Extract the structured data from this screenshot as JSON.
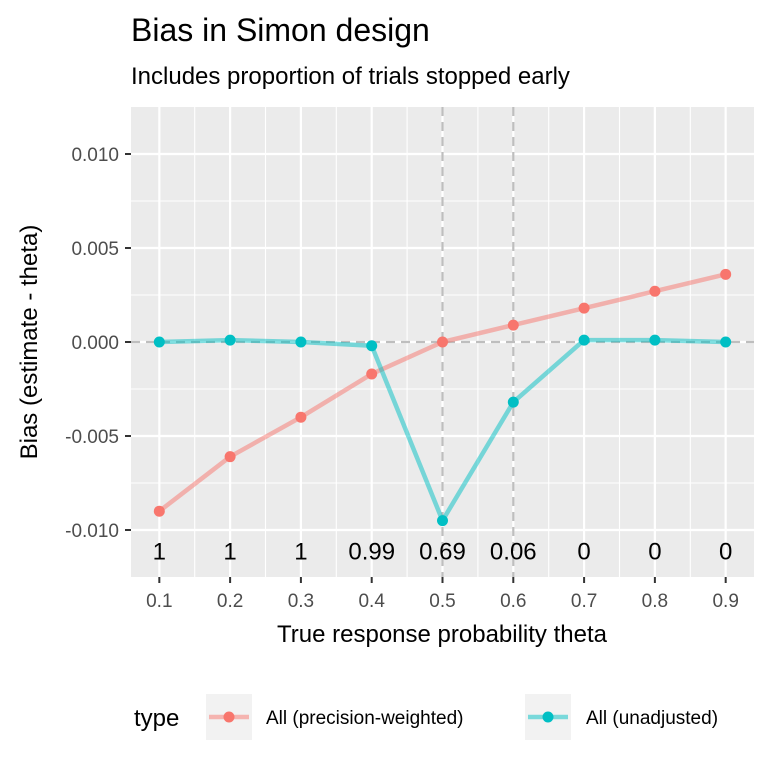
{
  "chart_data": {
    "type": "line",
    "title": "Bias in Simon design",
    "subtitle": "Includes proportion of trials stopped early",
    "xlabel": "True response probability theta",
    "ylabel": "Bias (estimate - theta)",
    "x": [
      0.1,
      0.2,
      0.3,
      0.4,
      0.5,
      0.6,
      0.7,
      0.8,
      0.9
    ],
    "x_tick_labels": [
      "0.1",
      "0.2",
      "0.3",
      "0.4",
      "0.5",
      "0.6",
      "0.7",
      "0.8",
      "0.9"
    ],
    "xlim": [
      0.06,
      0.94
    ],
    "y_ticks": [
      -0.01,
      -0.005,
      0.0,
      0.005,
      0.01
    ],
    "y_tick_labels": [
      "-0.010",
      "-0.005",
      "0.000",
      "0.005",
      "0.010"
    ],
    "ylim": [
      -0.0125,
      0.0125
    ],
    "grid": true,
    "reference_lines": {
      "horizontal": [
        0.0
      ],
      "vertical": [
        0.5,
        0.6
      ]
    },
    "annotations": {
      "y": -0.0111,
      "labels": [
        "1",
        "1",
        "1",
        "0.99",
        "0.69",
        "0.06",
        "0",
        "0",
        "0"
      ]
    },
    "legend": {
      "title": "type",
      "placement": "bottom"
    },
    "series": [
      {
        "name": "All (precision-weighted)",
        "color": "#F8766D",
        "values": [
          -0.009,
          -0.0061,
          -0.004,
          -0.0017,
          0.0,
          0.0009,
          0.0018,
          0.0027,
          0.0036
        ]
      },
      {
        "name": "All (unadjusted)",
        "color": "#00BFC4",
        "values": [
          0.0,
          0.0001,
          0.0,
          -0.0002,
          -0.0095,
          -0.0032,
          0.0001,
          0.0001,
          0.0
        ]
      }
    ]
  }
}
